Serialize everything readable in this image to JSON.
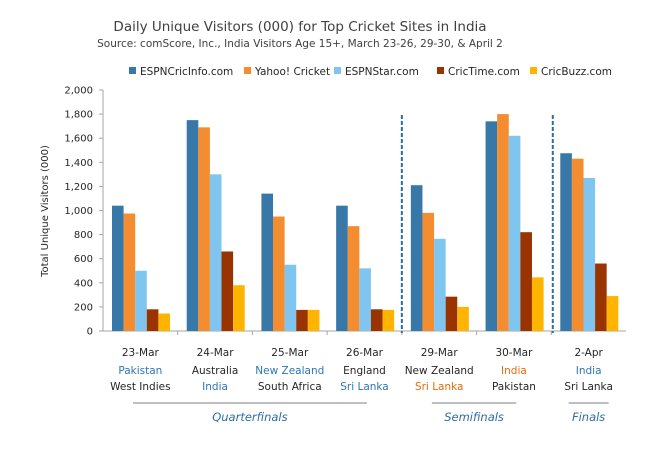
{
  "chart_data": {
    "type": "bar",
    "title": "Daily Unique Visitors (000) for Top Cricket Sites in India",
    "subtitle": "Source: comScore, Inc., India Visitors Age 15+, March 23-26, 29-30, & April 2",
    "ylabel": "Total Unique Visitors (000)",
    "xlabel": "",
    "ylim": [
      0,
      2000
    ],
    "yticks": [
      "0",
      "200",
      "400",
      "600",
      "800",
      "1,000",
      "1,200",
      "1,400",
      "1,600",
      "1,800",
      "2,000"
    ],
    "grid": false,
    "legend_position": "top",
    "categories": [
      {
        "date": "23-Mar",
        "team1": "Pakistan",
        "team1_color": "#2e75b6",
        "team2": "West Indies",
        "team2_color": "#262626"
      },
      {
        "date": "24-Mar",
        "team1": "Australia",
        "team1_color": "#262626",
        "team2": "India",
        "team2_color": "#2e75b6"
      },
      {
        "date": "25-Mar",
        "team1": "New Zealand",
        "team1_color": "#2e75b6",
        "team2": "South Africa",
        "team2_color": "#262626"
      },
      {
        "date": "26-Mar",
        "team1": "England",
        "team1_color": "#262626",
        "team2": "Sri Lanka",
        "team2_color": "#2e75b6"
      },
      {
        "date": "29-Mar",
        "team1": "New Zealand",
        "team1_color": "#262626",
        "team2": "Sri Lanka",
        "team2_color": "#e46c0a"
      },
      {
        "date": "30-Mar",
        "team1": "India",
        "team1_color": "#e46c0a",
        "team2": "Pakistan",
        "team2_color": "#262626"
      },
      {
        "date": "2-Apr",
        "team1": "India",
        "team1_color": "#2e75b6",
        "team2": "Sri Lanka",
        "team2_color": "#262626"
      }
    ],
    "series": [
      {
        "name": "ESPNCricInfo.com",
        "color": "#3878a8",
        "values": [
          1040,
          1750,
          1140,
          1040,
          1210,
          1740,
          1475
        ]
      },
      {
        "name": "Yahoo! Cricket",
        "color": "#f38d2f",
        "values": [
          975,
          1690,
          950,
          870,
          980,
          1800,
          1430
        ]
      },
      {
        "name": "ESPNStar.com",
        "color": "#7fc5f0",
        "values": [
          500,
          1300,
          550,
          520,
          765,
          1620,
          1270
        ]
      },
      {
        "name": "CricTime.com",
        "color": "#993300",
        "values": [
          180,
          660,
          175,
          180,
          285,
          820,
          560
        ]
      },
      {
        "name": "CricBuzz.com",
        "color": "#ffb400",
        "values": [
          145,
          380,
          175,
          175,
          200,
          445,
          290
        ]
      }
    ],
    "stages": [
      {
        "label": "Quarterfinals",
        "from": 0,
        "to": 3
      },
      {
        "label": "Semifinals",
        "from": 4,
        "to": 5
      },
      {
        "label": "Finals",
        "from": 6,
        "to": 6
      }
    ],
    "divider_color": "#2e6da4"
  }
}
